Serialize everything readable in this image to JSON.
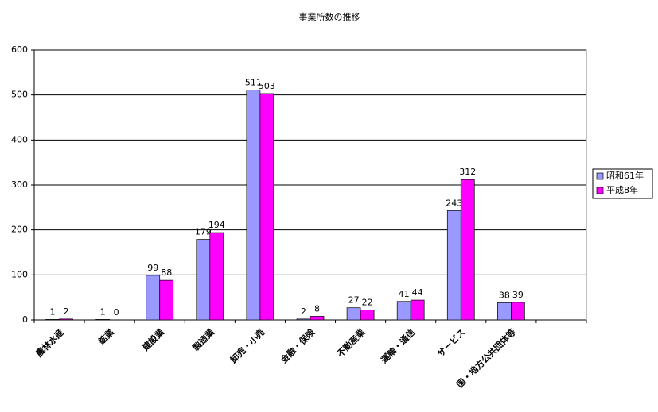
{
  "chart_data": {
    "type": "bar",
    "title": "事業所数の推移",
    "categories": [
      "農林水産",
      "鉱業",
      "建設業",
      "製造業",
      "卸売・小売",
      "金融・保険",
      "不動産業",
      "運輸・通信",
      "サービス",
      "国・地方公共団体等",
      null
    ],
    "series": [
      {
        "name": "昭和61年",
        "color": "#9999ff",
        "values": [
          1,
          1,
          99,
          179,
          511,
          2,
          27,
          41,
          243,
          38,
          null
        ]
      },
      {
        "name": "平成8年",
        "color": "#ff00ff",
        "values": [
          2,
          0,
          88,
          194,
          503,
          8,
          22,
          44,
          312,
          39,
          null
        ]
      }
    ],
    "ylim": [
      0,
      600
    ],
    "yticks": [
      0,
      100,
      200,
      300,
      400,
      500,
      600
    ],
    "grid": true,
    "legend": "right"
  }
}
